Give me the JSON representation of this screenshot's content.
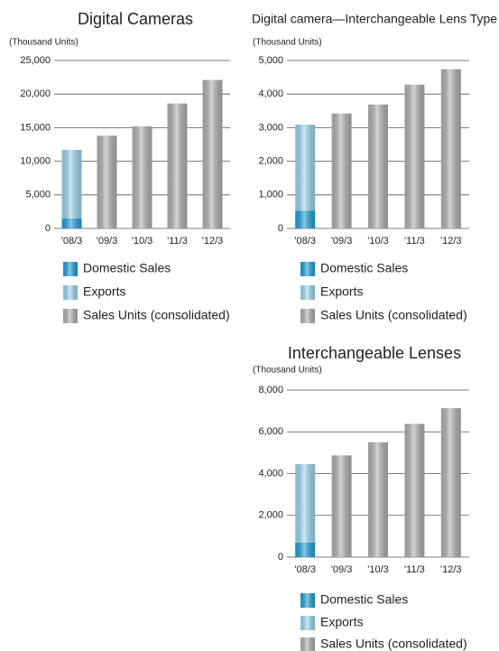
{
  "chart_data": [
    {
      "type": "bar",
      "title": "Digital Cameras",
      "y_label": "(Thousand Units)",
      "categories": [
        "'08/3",
        "'09/3",
        "'10/3",
        "'11/3",
        "'12/3"
      ],
      "series": [
        {
          "name": "Domestic Sales",
          "color": "#1fa2dc",
          "values": [
            1500,
            null,
            null,
            null,
            null
          ]
        },
        {
          "name": "Exports",
          "color": "#9fdbf4",
          "values": [
            10200,
            null,
            null,
            null,
            null
          ]
        },
        {
          "name": "Sales Units (consolidated)",
          "color": "#b4b4b4",
          "values": [
            null,
            13800,
            15200,
            18600,
            22100
          ]
        }
      ],
      "ylim": [
        0,
        25000
      ],
      "yticks": [
        0,
        {
          "value": 5000,
          "label": "5,000"
        },
        {
          "value": 10000,
          "label": "10,000"
        },
        {
          "value": 15000,
          "label": "15,000"
        },
        {
          "value": 20000,
          "label": "20,000"
        },
        {
          "value": 25000,
          "label": "25,000"
        }
      ],
      "grid": true
    },
    {
      "type": "bar",
      "title": "Digital camera—Interchangeable Lens Type",
      "y_label": "(Thousand Units)",
      "categories": [
        "'08/3",
        "'09/3",
        "'10/3",
        "'11/3",
        "'12/3"
      ],
      "series": [
        {
          "name": "Domestic Sales",
          "color": "#1fa2dc",
          "values": [
            530,
            null,
            null,
            null,
            null
          ]
        },
        {
          "name": "Exports",
          "color": "#9fdbf4",
          "values": [
            2560,
            null,
            null,
            null,
            null
          ]
        },
        {
          "name": "Sales Units (consolidated)",
          "color": "#b4b4b4",
          "values": [
            null,
            3420,
            3690,
            4280,
            4740
          ]
        }
      ],
      "ylim": [
        0,
        5000
      ],
      "yticks": [
        0,
        {
          "value": 1000,
          "label": "1,000"
        },
        {
          "value": 2000,
          "label": "2,000"
        },
        {
          "value": 3000,
          "label": "3,000"
        },
        {
          "value": 4000,
          "label": "4,000"
        },
        {
          "value": 5000,
          "label": "5,000"
        }
      ],
      "grid": true
    },
    {
      "type": "bar",
      "title": "Interchangeable Lenses",
      "y_label": "(Thousand Units)",
      "categories": [
        "'08/3",
        "'09/3",
        "'10/3",
        "'11/3",
        "'12/3"
      ],
      "series": [
        {
          "name": "Domestic Sales",
          "color": "#1fa2dc",
          "values": [
            700,
            null,
            null,
            null,
            null
          ]
        },
        {
          "name": "Exports",
          "color": "#9fdbf4",
          "values": [
            3750,
            null,
            null,
            null,
            null
          ]
        },
        {
          "name": "Sales Units (consolidated)",
          "color": "#b4b4b4",
          "values": [
            null,
            4870,
            5500,
            6380,
            7130
          ]
        }
      ],
      "ylim": [
        0,
        8000
      ],
      "yticks": [
        0,
        {
          "value": 2000,
          "label": "2,000"
        },
        {
          "value": 4000,
          "label": "4,000"
        },
        {
          "value": 6000,
          "label": "6,000"
        },
        {
          "value": 8000,
          "label": "8,000"
        }
      ],
      "grid": true
    }
  ]
}
